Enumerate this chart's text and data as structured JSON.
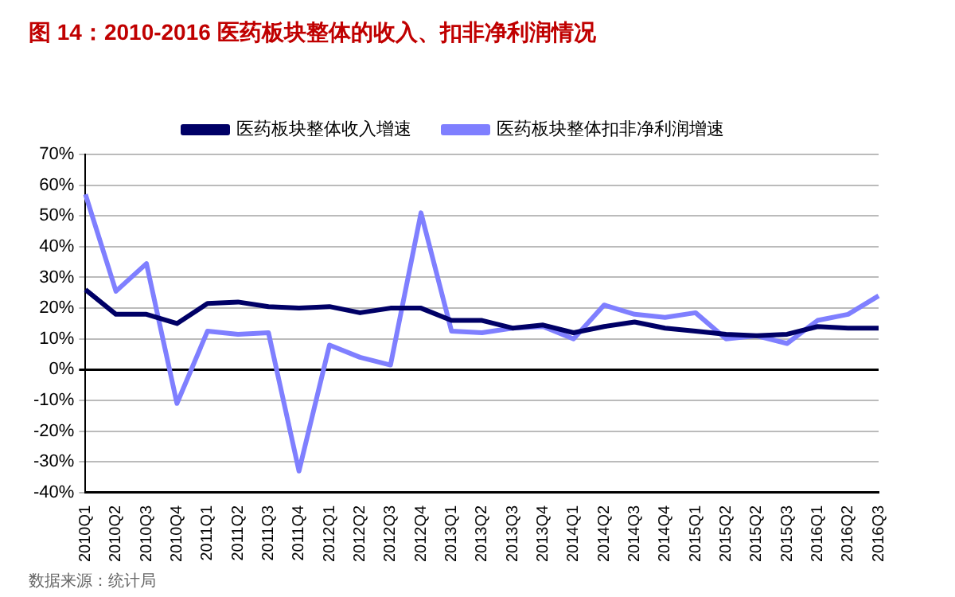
{
  "chart_data": {
    "type": "line",
    "title": "图 14：2010-2016 医药板块整体的收入、扣非净利润情况",
    "annotations": [
      "数据来源：统计局"
    ],
    "categories": [
      "2010Q1",
      "2010Q2",
      "2010Q3",
      "2010Q4",
      "2011Q1",
      "2011Q2",
      "2011Q3",
      "2011Q4",
      "2012Q1",
      "2012Q2",
      "2012Q3",
      "2012Q4",
      "2013Q1",
      "2013Q2",
      "2013Q3",
      "2013Q4",
      "2014Q1",
      "2014Q2",
      "2014Q3",
      "2014Q4",
      "2015Q1",
      "2015Q2",
      "2015Q2",
      "2015Q3",
      "2016Q1",
      "2016Q2",
      "2016Q3"
    ],
    "series": [
      {
        "name": "医药板块整体收入增速",
        "color": "#000066",
        "values": [
          26,
          18,
          18,
          15,
          21.5,
          22,
          20.5,
          20,
          20.5,
          18.5,
          20,
          20,
          16,
          16,
          13.5,
          14.5,
          12,
          14,
          15.5,
          13.5,
          12.5,
          11.5,
          11,
          11.5,
          14,
          13.5,
          13.5
        ]
      },
      {
        "name": "医药板块整体扣非净利润增速",
        "color": "#7f7fff",
        "values": [
          57,
          25.5,
          34.5,
          -11,
          12.5,
          11.5,
          12,
          -33,
          8,
          4,
          1.5,
          51,
          12.5,
          12,
          13.5,
          14,
          10,
          21,
          18,
          17,
          18.5,
          10,
          11,
          8.5,
          16,
          18,
          24
        ]
      }
    ],
    "ylim": [
      -40,
      70
    ],
    "yticks": [
      {
        "value": -40,
        "label": "-40%"
      },
      {
        "value": -30,
        "label": "-30%"
      },
      {
        "value": -20,
        "label": "-20%"
      },
      {
        "value": -10,
        "label": "-10%"
      },
      {
        "value": 0,
        "label": "0%"
      },
      {
        "value": 10,
        "label": "10%"
      },
      {
        "value": 20,
        "label": "20%"
      },
      {
        "value": 30,
        "label": "30%"
      },
      {
        "value": 40,
        "label": "40%"
      },
      {
        "value": 50,
        "label": "50%"
      },
      {
        "value": 60,
        "label": "60%"
      },
      {
        "value": 70,
        "label": "70%"
      }
    ],
    "grid": "y",
    "legend": "top",
    "marker": "none",
    "line_style": "solid"
  }
}
